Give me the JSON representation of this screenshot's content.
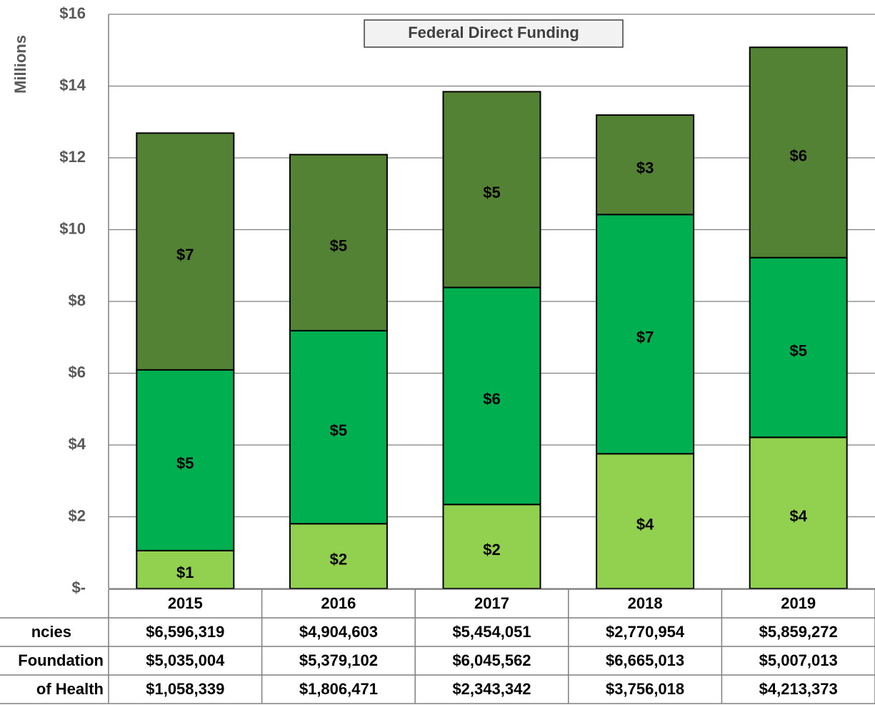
{
  "chart_data": {
    "type": "stacked_bar",
    "title": "Federal Direct Funding",
    "y_label": "Millions",
    "categories": [
      "2015",
      "2016",
      "2017",
      "2018",
      "2019"
    ],
    "series": [
      {
        "name": "ncies",
        "color": "#548235",
        "values": [
          6.596319,
          4.904603,
          5.454051,
          2.770954,
          5.859272
        ],
        "value_labels": [
          "$7",
          "$5",
          "$5",
          "$3",
          "$6"
        ],
        "table_labels": [
          "$6,596,319",
          "$4,904,603",
          "$5,454,051",
          "$2,770,954",
          "$5,859,272"
        ]
      },
      {
        "name": "Foundation",
        "color": "#00b050",
        "values": [
          5.035004,
          5.379102,
          6.045562,
          6.665013,
          5.007013
        ],
        "value_labels": [
          "$5",
          "$5",
          "$6",
          "$7",
          "$5"
        ],
        "table_labels": [
          "$5,035,004",
          "$5,379,102",
          "$6,045,562",
          "$6,665,013",
          "$5,007,013"
        ]
      },
      {
        "name": "of Health",
        "color": "#92d050",
        "values": [
          1.058339,
          1.806471,
          2.343342,
          3.756018,
          4.213373
        ],
        "value_labels": [
          "$1",
          "$2",
          "$2",
          "$4",
          "$4"
        ],
        "table_labels": [
          "$1,058,339",
          "$1,806,471",
          "$2,343,342",
          "$3,756,018",
          "$4,213,373"
        ]
      }
    ],
    "ylim": [
      0,
      16
    ],
    "yticks": [
      {
        "value": 0,
        "label": "$-"
      },
      {
        "value": 2,
        "label": "$2"
      },
      {
        "value": 4,
        "label": "$4"
      },
      {
        "value": 6,
        "label": "$6"
      },
      {
        "value": 8,
        "label": "$8"
      },
      {
        "value": 10,
        "label": "$10"
      },
      {
        "value": 12,
        "label": "$12"
      },
      {
        "value": 14,
        "label": "$14"
      },
      {
        "value": 16,
        "label": "$16"
      }
    ],
    "grid": true
  }
}
